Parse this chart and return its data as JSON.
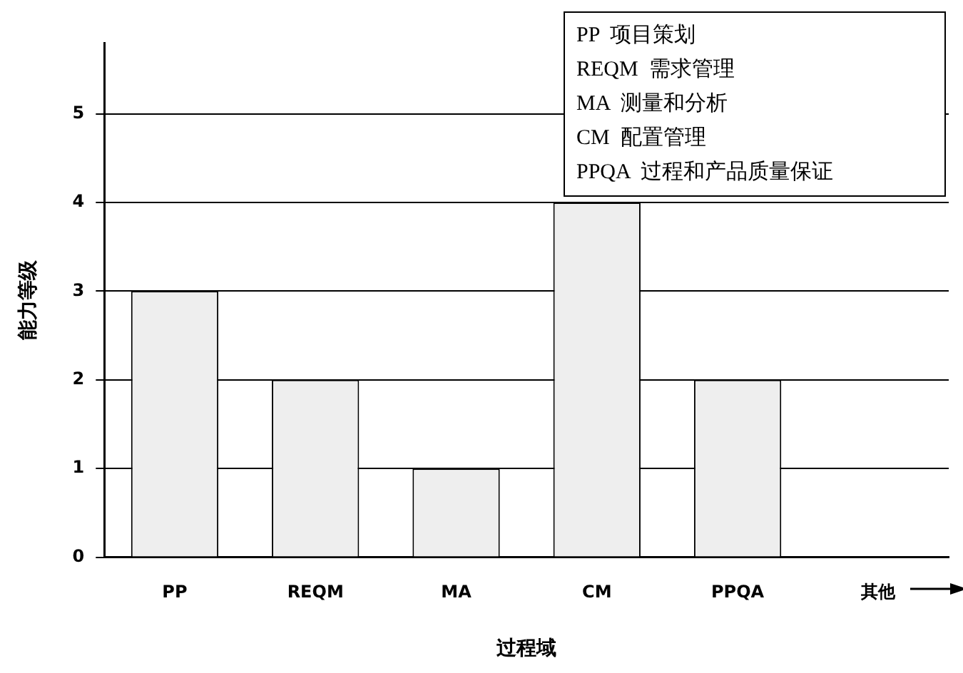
{
  "chart_data": {
    "type": "bar",
    "xlabel": "过程域",
    "ylabel": "能力等级",
    "categories": [
      "PP",
      "REQM",
      "MA",
      "CM",
      "PPQA",
      "其他"
    ],
    "values": [
      3,
      2,
      1,
      4,
      2,
      null
    ],
    "color": "#eeeeee",
    "ylim": [
      0,
      5.8
    ],
    "yticks": [
      0,
      1,
      2,
      3,
      4,
      5
    ],
    "grid": "y",
    "annotations": [
      "PP  项目策划",
      "REQM  需求管理",
      "MA  测量和分析",
      "CM  配置管理",
      "PPQA  过程和产品质量保证"
    ]
  }
}
